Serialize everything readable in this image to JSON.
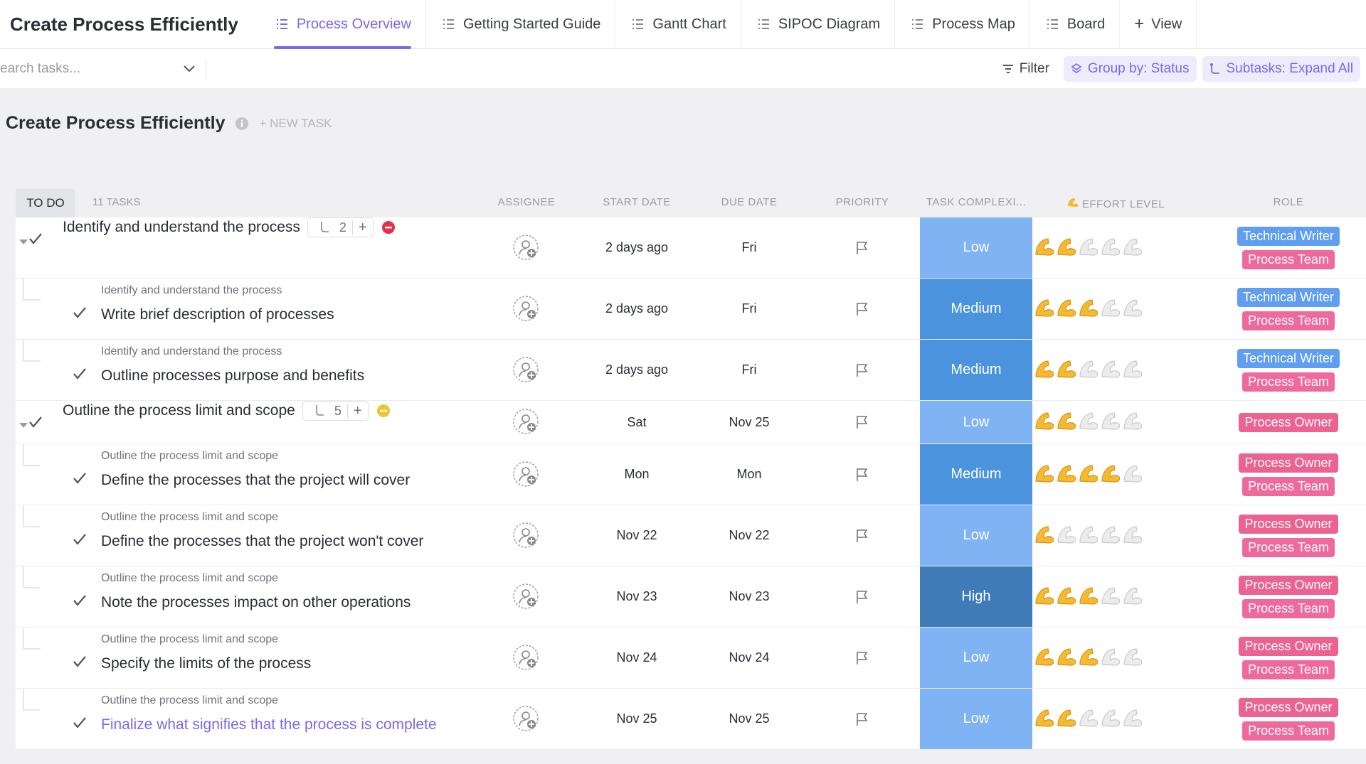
{
  "header": {
    "title": "Create Process Efficiently",
    "tabs": [
      "Process Overview",
      "Getting Started Guide",
      "Gantt Chart",
      "SIPOC Diagram",
      "Process Map",
      "Board"
    ],
    "active_tab": 0,
    "add_view": "View"
  },
  "toolbar": {
    "search_placeholder": "earch tasks...",
    "filter": "Filter",
    "group_by": "Group by: Status",
    "subtasks": "Subtasks: Expand All"
  },
  "list": {
    "title": "Create Process Efficiently",
    "new_task": "+ NEW TASK",
    "status": "TO DO",
    "task_count": "11 TASKS",
    "columns": {
      "assignee": "ASSIGNEE",
      "start_date": "START DATE",
      "due_date": "DUE DATE",
      "priority": "PRIORITY",
      "complexity": "TASK COMPLEXI...",
      "effort": "EFFORT LEVEL",
      "role": "ROLE"
    },
    "effort_scale": 5,
    "complexity_colors": {
      "Low": "#80b3f3",
      "Medium": "#4b93dc",
      "High": "#3f7bb7"
    },
    "role_colors": {
      "Technical Writer": "#5f9ef0",
      "Process Team": "#ef6a9c",
      "Process Owner": "#ec6290"
    },
    "rows": [
      {
        "kind": "parent",
        "name": "Identify and understand the process",
        "subtasks": "2",
        "badge_color": "#e5304a",
        "start": "2 days ago",
        "due": "Fri",
        "complexity": "Low",
        "effort": 2,
        "roles": [
          "Technical Writer",
          "Process Team"
        ]
      },
      {
        "kind": "subtask",
        "parent": "Identify and understand the process",
        "name": "Write brief description of processes",
        "start": "2 days ago",
        "due": "Fri",
        "complexity": "Medium",
        "effort": 3,
        "roles": [
          "Technical Writer",
          "Process Team"
        ]
      },
      {
        "kind": "subtask",
        "parent": "Identify and understand the process",
        "name": "Outline processes purpose and benefits",
        "start": "2 days ago",
        "due": "Fri",
        "complexity": "Medium",
        "effort": 2,
        "roles": [
          "Technical Writer",
          "Process Team"
        ]
      },
      {
        "kind": "parent",
        "name": "Outline the process limit and scope",
        "subtasks": "5",
        "badge_color": "#f2c22f",
        "start": "Sat",
        "due": "Nov 25",
        "complexity": "Low",
        "effort": 2,
        "roles": [
          "Process Owner"
        ]
      },
      {
        "kind": "subtask",
        "parent": "Outline the process limit and scope",
        "name": "Define the processes that the project will cover",
        "start": "Mon",
        "due": "Mon",
        "complexity": "Medium",
        "effort": 4,
        "roles": [
          "Process Owner",
          "Process Team"
        ]
      },
      {
        "kind": "subtask",
        "parent": "Outline the process limit and scope",
        "name": "Define the processes that the project won't cover",
        "start": "Nov 22",
        "due": "Nov 22",
        "complexity": "Low",
        "effort": 1,
        "roles": [
          "Process Owner",
          "Process Team"
        ]
      },
      {
        "kind": "subtask",
        "parent": "Outline the process limit and scope",
        "name": "Note the processes impact on other operations",
        "start": "Nov 23",
        "due": "Nov 23",
        "complexity": "High",
        "effort": 3,
        "roles": [
          "Process Owner",
          "Process Team"
        ]
      },
      {
        "kind": "subtask",
        "parent": "Outline the process limit and scope",
        "name": "Specify the limits of the process",
        "start": "Nov 24",
        "due": "Nov 24",
        "complexity": "Low",
        "effort": 3,
        "roles": [
          "Process Owner",
          "Process Team"
        ]
      },
      {
        "kind": "subtask",
        "parent": "Outline the process limit and scope",
        "name": "Finalize what signifies that the process is complete",
        "link": true,
        "start": "Nov 25",
        "due": "Nov 25",
        "complexity": "Low",
        "effort": 2,
        "roles": [
          "Process Owner",
          "Process Team"
        ]
      }
    ]
  }
}
